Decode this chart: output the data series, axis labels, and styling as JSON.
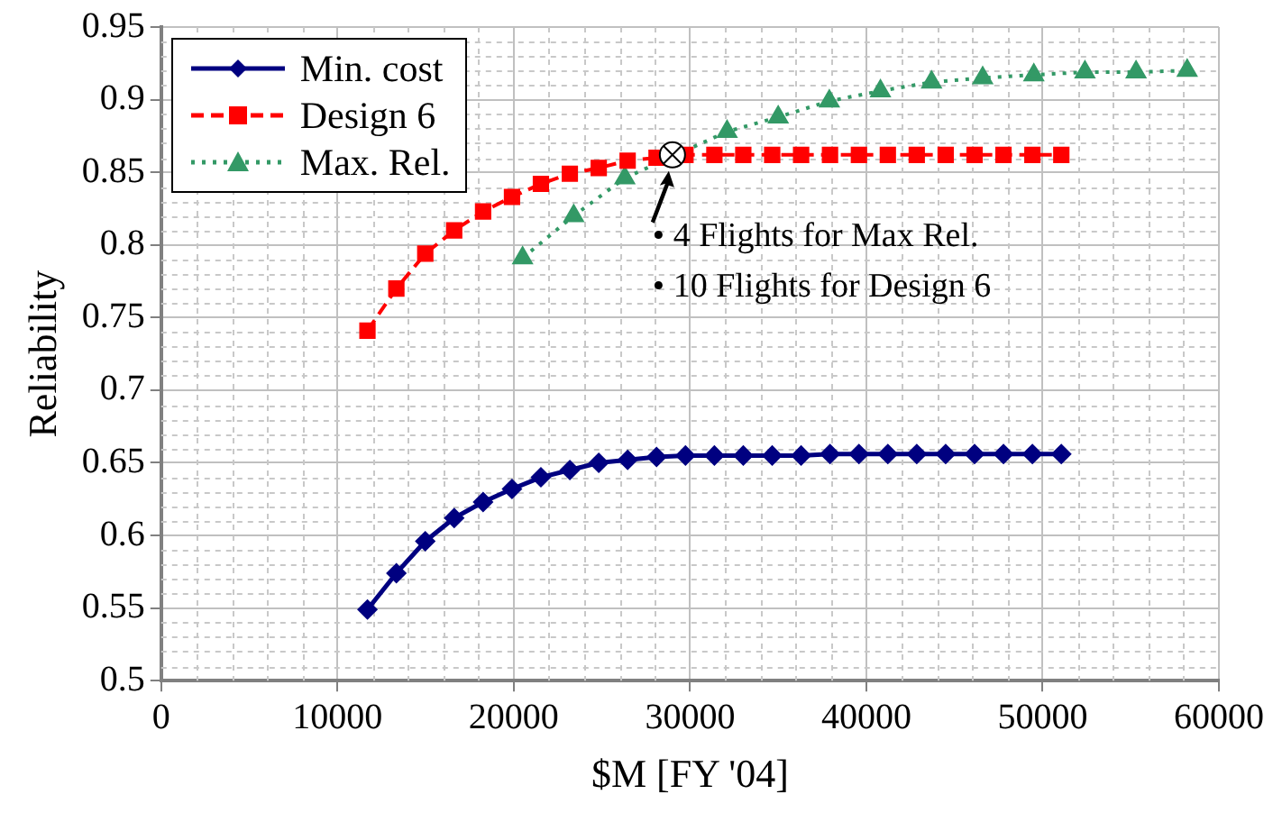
{
  "chart_data": {
    "type": "line",
    "xlabel": "$M [FY '04]",
    "ylabel": "Reliability",
    "xlim": [
      0,
      60000
    ],
    "xticks": [
      0,
      10000,
      20000,
      30000,
      40000,
      50000,
      60000
    ],
    "ylim": [
      0.5,
      0.95
    ],
    "yticks": [
      0.5,
      0.55,
      0.6,
      0.65,
      0.7,
      0.75,
      0.8,
      0.85,
      0.9,
      0.95
    ],
    "grid": true,
    "legend": "top left",
    "annotations": [
      {
        "text": "• 4 Flights for Max Rel.",
        "x": 29000,
        "y": 0.862
      },
      "• 10 Flights for Design 6"
    ],
    "series": [
      {
        "name": "Min. cost",
        "color": "#000080",
        "marker": "diamond",
        "line_style": "solid",
        "x": [
          11700,
          13340,
          14980,
          16620,
          18260,
          19900,
          21540,
          23180,
          24820,
          26460,
          28100,
          29740,
          31380,
          33020,
          34660,
          36300,
          37940,
          39580,
          41220,
          42860,
          44500,
          46140,
          47780,
          49420,
          51060
        ],
        "values": [
          0.549,
          0.574,
          0.596,
          0.612,
          0.623,
          0.632,
          0.64,
          0.645,
          0.65,
          0.652,
          0.654,
          0.655,
          0.655,
          0.655,
          0.655,
          0.655,
          0.656,
          0.656,
          0.656,
          0.656,
          0.656,
          0.656,
          0.656,
          0.656,
          0.656
        ]
      },
      {
        "name": "Design 6",
        "color": "#ff0000",
        "marker": "square",
        "line_style": "dashed",
        "x": [
          11700,
          13340,
          14980,
          16620,
          18260,
          19900,
          21540,
          23180,
          24820,
          26460,
          28100,
          29740,
          31380,
          33020,
          34660,
          36300,
          37940,
          39580,
          41220,
          42860,
          44500,
          46140,
          47780,
          49420,
          51060
        ],
        "values": [
          0.741,
          0.77,
          0.794,
          0.81,
          0.823,
          0.833,
          0.842,
          0.849,
          0.853,
          0.858,
          0.86,
          0.862,
          0.862,
          0.862,
          0.862,
          0.862,
          0.862,
          0.862,
          0.862,
          0.862,
          0.862,
          0.862,
          0.862,
          0.862,
          0.862
        ]
      },
      {
        "name": "Max. Rel.",
        "color": "#339966",
        "marker": "triangle",
        "line_style": "dotted",
        "x": [
          20500,
          23400,
          26300,
          29200,
          32100,
          35000,
          37900,
          40800,
          43700,
          46600,
          49500,
          52400,
          55300,
          58200
        ],
        "values": [
          0.791,
          0.82,
          0.846,
          null,
          0.878,
          0.888,
          0.899,
          0.906,
          0.912,
          0.915,
          0.917,
          0.919,
          0.919,
          0.92
        ]
      }
    ]
  }
}
